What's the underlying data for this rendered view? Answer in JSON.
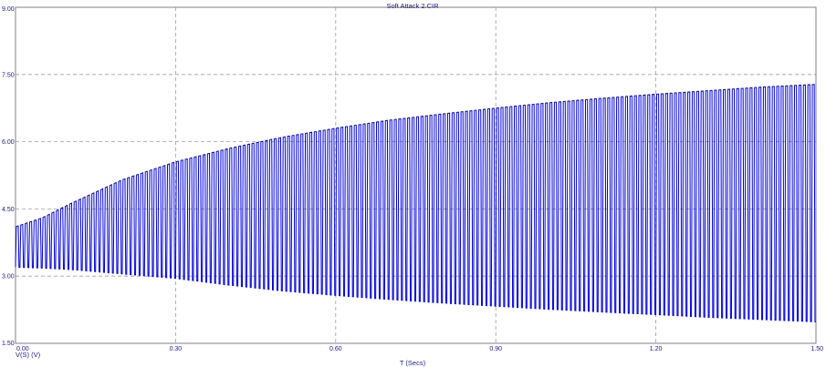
{
  "chart_data": {
    "type": "line",
    "title": "Soft Attack 2.CIR",
    "xlabel": "T (Secs)",
    "ylabel": "V(S) (V)",
    "xlim": [
      0.0,
      1.5
    ],
    "ylim": [
      1.5,
      9.0
    ],
    "x_ticks": [
      "0.00",
      "0.30",
      "0.60",
      "0.90",
      "1.20",
      "1.50"
    ],
    "y_ticks": [
      "9.00",
      "7.50",
      "6.00",
      "4.50",
      "3.00",
      "1.50"
    ],
    "grid": true,
    "series": [
      {
        "name": "V(S) (V)",
        "color": "#0000e0",
        "cycles": 180,
        "upper_envelope": {
          "x": [
            0.0,
            0.05,
            0.1,
            0.2,
            0.3,
            0.4,
            0.5,
            0.6,
            0.7,
            0.8,
            0.9,
            1.0,
            1.1,
            1.2,
            1.3,
            1.4,
            1.5
          ],
          "y": [
            4.1,
            4.3,
            4.6,
            5.15,
            5.55,
            5.85,
            6.1,
            6.3,
            6.48,
            6.62,
            6.75,
            6.87,
            6.97,
            7.06,
            7.14,
            7.22,
            7.28
          ]
        },
        "lower_envelope": {
          "x": [
            0.0,
            0.05,
            0.1,
            0.2,
            0.3,
            0.4,
            0.5,
            0.6,
            0.7,
            0.8,
            0.9,
            1.0,
            1.1,
            1.2,
            1.3,
            1.4,
            1.5
          ],
          "y": [
            3.2,
            3.18,
            3.15,
            3.05,
            2.95,
            2.8,
            2.67,
            2.57,
            2.48,
            2.4,
            2.33,
            2.26,
            2.2,
            2.14,
            2.08,
            2.03,
            1.98
          ]
        }
      }
    ]
  }
}
